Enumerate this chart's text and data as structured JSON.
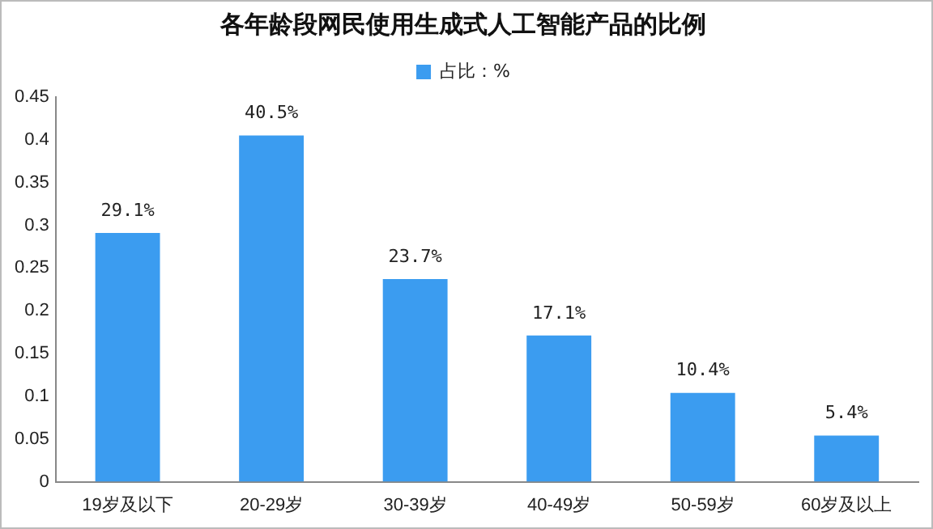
{
  "chart_data": {
    "type": "bar",
    "title": "各年龄段网民使用生成式人工智能产品的比例",
    "categories": [
      "19岁及以下",
      "20-29岁",
      "30-39岁",
      "40-49岁",
      "50-59岁",
      "60岁及以上"
    ],
    "series": [
      {
        "name": "占比：%",
        "color": "#3b9cf0",
        "values": [
          0.291,
          0.405,
          0.237,
          0.171,
          0.104,
          0.054
        ],
        "value_labels": [
          "29.1%",
          "40.5%",
          "23.7%",
          "17.1%",
          "10.4%",
          "5.4%"
        ]
      }
    ],
    "ylim": [
      0,
      0.45
    ],
    "yticks": [
      0,
      0.05,
      0.1,
      0.15,
      0.2,
      0.25,
      0.3,
      0.35,
      0.4,
      0.45
    ],
    "grid": false,
    "legend": "top"
  }
}
